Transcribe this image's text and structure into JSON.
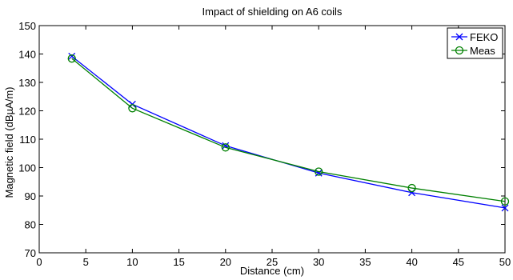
{
  "chart_data": {
    "type": "line",
    "title": "Impact of shielding on A6 coils",
    "xlabel": "Distance (cm)",
    "ylabel": "Magnetic field (dBµA/m)",
    "xlim": [
      0,
      50
    ],
    "ylim": [
      70,
      150
    ],
    "xticks": [
      0,
      5,
      10,
      15,
      20,
      25,
      30,
      35,
      40,
      45,
      50
    ],
    "yticks": [
      70,
      80,
      90,
      100,
      110,
      120,
      130,
      140,
      150
    ],
    "grid": false,
    "legend_position": "top-right",
    "series": [
      {
        "name": "FEKO",
        "color": "#0000ff",
        "marker": "x",
        "x": [
          3.5,
          10,
          20,
          30,
          40,
          50
        ],
        "y": [
          139.2,
          122.3,
          107.7,
          98.1,
          91.2,
          85.8
        ]
      },
      {
        "name": "Meas",
        "color": "#008000",
        "marker": "o",
        "x": [
          3.5,
          10,
          20,
          30,
          40,
          50
        ],
        "y": [
          138.4,
          120.9,
          107.1,
          98.6,
          92.8,
          88.1
        ]
      }
    ]
  }
}
